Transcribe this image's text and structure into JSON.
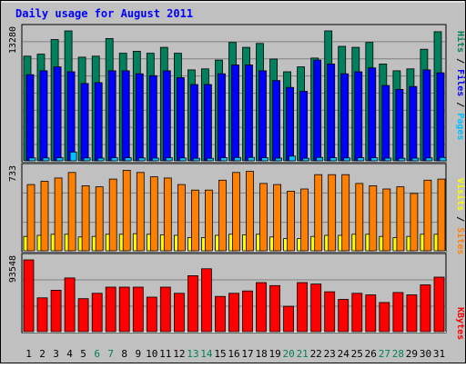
{
  "title": "Daily usage for August 2011",
  "colors": {
    "background": "#c0c0c0",
    "border": "#000000",
    "title": "#0000ff",
    "hits": "#00805c",
    "files": "#0000ff",
    "pages": "#00c0ff",
    "visits": "#ffff00",
    "sites": "#ff8000",
    "kbytes": "#ff0000",
    "weekend_label": "#00805c",
    "weekday_label": "#000000"
  },
  "chart_data": [
    {
      "type": "bar",
      "panel": "top",
      "ymax_label": "13280",
      "ymax": 13280,
      "legend": [
        {
          "text": "Hits",
          "color_key": "hits"
        },
        {
          "text": " / ",
          "color_key": "border"
        },
        {
          "text": "Files",
          "color_key": "files"
        },
        {
          "text": " / ",
          "color_key": "border"
        },
        {
          "text": "Pages",
          "color_key": "pages"
        }
      ],
      "categories": [
        "1",
        "2",
        "3",
        "4",
        "5",
        "6",
        "7",
        "8",
        "9",
        "10",
        "11",
        "12",
        "13",
        "14",
        "15",
        "16",
        "17",
        "18",
        "19",
        "20",
        "21",
        "22",
        "23",
        "24",
        "25",
        "26",
        "27",
        "28",
        "29",
        "30",
        "31"
      ],
      "series": [
        {
          "name": "Hits",
          "color_key": "hits",
          "values": [
            10700,
            10900,
            12400,
            13280,
            10600,
            10700,
            12500,
            11000,
            11200,
            11000,
            11600,
            11000,
            9300,
            9400,
            10300,
            12100,
            11600,
            12000,
            10400,
            9100,
            9600,
            10500,
            13280,
            11700,
            11600,
            12100,
            9900,
            9200,
            9400,
            11400,
            13200
          ]
        },
        {
          "name": "Files",
          "color_key": "files",
          "values": [
            8800,
            9200,
            9600,
            9100,
            7900,
            8000,
            9200,
            9200,
            8900,
            8700,
            9200,
            8500,
            7800,
            7800,
            8900,
            9800,
            9800,
            9200,
            8200,
            7500,
            7100,
            10300,
            9900,
            8900,
            9100,
            9500,
            7700,
            7300,
            7600,
            9300,
            9000
          ]
        },
        {
          "name": "Pages",
          "color_key": "pages",
          "values": [
            300,
            300,
            320,
            900,
            300,
            280,
            320,
            320,
            300,
            280,
            320,
            300,
            260,
            260,
            320,
            340,
            350,
            320,
            280,
            480,
            260,
            340,
            320,
            300,
            320,
            320,
            280,
            260,
            280,
            300,
            340
          ]
        }
      ]
    },
    {
      "type": "bar",
      "panel": "middle",
      "ymax_label": "733",
      "ymax": 733,
      "legend": [
        {
          "text": "Visits",
          "color_key": "visits"
        },
        {
          "text": " / ",
          "color_key": "border"
        },
        {
          "text": "Sites",
          "color_key": "sites"
        }
      ],
      "categories": [
        "1",
        "2",
        "3",
        "4",
        "5",
        "6",
        "7",
        "8",
        "9",
        "10",
        "11",
        "12",
        "13",
        "14",
        "15",
        "16",
        "17",
        "18",
        "19",
        "20",
        "21",
        "22",
        "23",
        "24",
        "25",
        "26",
        "27",
        "28",
        "29",
        "30",
        "31"
      ],
      "series": [
        {
          "name": "Visits",
          "color_key": "visits",
          "values": [
            130,
            140,
            150,
            150,
            125,
            130,
            150,
            150,
            155,
            150,
            145,
            140,
            120,
            120,
            140,
            150,
            145,
            150,
            125,
            110,
            110,
            130,
            140,
            140,
            150,
            150,
            130,
            120,
            130,
            150,
            150
          ]
        },
        {
          "name": "Sites",
          "color_key": "sites",
          "values": [
            600,
            630,
            660,
            710,
            590,
            580,
            650,
            730,
            710,
            670,
            660,
            600,
            550,
            550,
            640,
            710,
            720,
            610,
            600,
            540,
            560,
            690,
            690,
            690,
            610,
            590,
            560,
            580,
            520,
            640,
            650
          ]
        }
      ]
    },
    {
      "type": "bar",
      "panel": "bottom",
      "ymax_label": "93548",
      "ymax": 93548,
      "legend": [
        {
          "text": "KBytes",
          "color_key": "kbytes"
        }
      ],
      "categories": [
        "1",
        "2",
        "3",
        "4",
        "5",
        "6",
        "7",
        "8",
        "9",
        "10",
        "11",
        "12",
        "13",
        "14",
        "15",
        "16",
        "17",
        "18",
        "19",
        "20",
        "21",
        "22",
        "23",
        "24",
        "25",
        "26",
        "27",
        "28",
        "29",
        "30",
        "31"
      ],
      "series": [
        {
          "name": "KBytes",
          "color_key": "kbytes",
          "values": [
            93548,
            44000,
            54000,
            70000,
            43000,
            50000,
            58000,
            58000,
            58000,
            45000,
            58000,
            50000,
            73000,
            82000,
            46000,
            50000,
            53000,
            64000,
            60000,
            33000,
            64000,
            62000,
            52000,
            42000,
            50000,
            48000,
            38000,
            51000,
            48000,
            61000,
            71000
          ]
        }
      ]
    }
  ],
  "x_axis": {
    "labels": [
      "1",
      "2",
      "3",
      "4",
      "5",
      "6",
      "7",
      "8",
      "9",
      "10",
      "11",
      "12",
      "13",
      "14",
      "15",
      "16",
      "17",
      "18",
      "19",
      "20",
      "21",
      "22",
      "23",
      "24",
      "25",
      "26",
      "27",
      "28",
      "29",
      "30",
      "31"
    ],
    "weekend_days": [
      "6",
      "7",
      "13",
      "14",
      "20",
      "21",
      "27",
      "28"
    ]
  }
}
